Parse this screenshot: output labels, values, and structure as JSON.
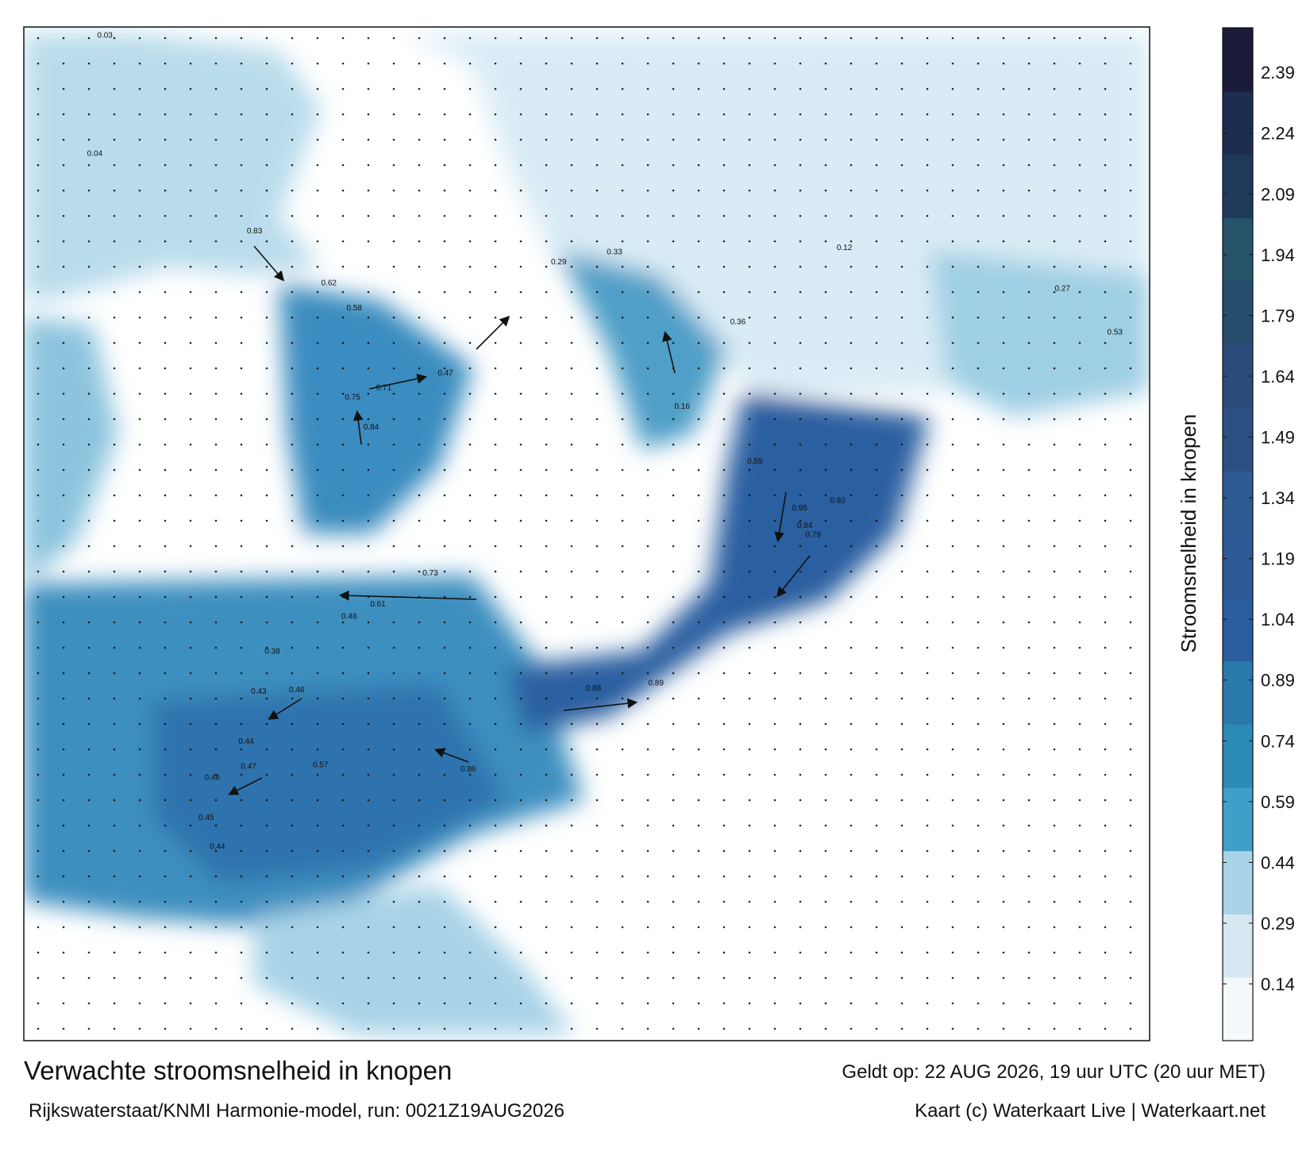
{
  "map": {
    "title": "Verwachte stroomsnelheid in knopen",
    "valid": "Geldt op: 22 AUG 2026, 19 uur UTC (20 uur MET)",
    "source": "Rijkswaterstaat/KNMI Harmonie-model, run: 0021Z19AUG2026",
    "credit": "Kaart (c) Waterkaart Live | Waterkaart.net",
    "speed_labels": [
      0.83,
      0.62,
      0.58,
      0.71,
      0.84,
      0.75,
      0.47,
      0.73,
      0.61,
      0.48,
      0.38,
      0.43,
      0.46,
      0.44,
      0.47,
      0.46,
      0.45,
      0.44,
      0.57,
      0.86,
      0.88,
      0.89,
      0.94,
      0.95,
      0.92,
      0.79,
      0.55,
      0.36,
      0.33,
      0.29,
      0.03,
      0.04,
      0.12,
      0.27,
      0.53,
      0.16
    ]
  },
  "colorbar": {
    "label": "Stroomsnelheid in knopen",
    "lim": [
      0,
      2.5
    ],
    "ticks": [
      0.14,
      0.29,
      0.44,
      0.59,
      0.74,
      0.89,
      1.04,
      1.19,
      1.34,
      1.49,
      1.64,
      1.79,
      1.94,
      2.09,
      2.24,
      2.39
    ],
    "colors": [
      "#f4f9fc",
      "#d6e9f2",
      "#a9d3e6",
      "#3f9fc8",
      "#2c8bb6",
      "#2979ac",
      "#2a5d9e",
      "#2e5a98",
      "#2f5b93",
      "#2c4f82",
      "#2b4c7a",
      "#264c6e",
      "#25536a",
      "#1f3a5a",
      "#1d2d4f",
      "#1a1a3a"
    ]
  }
}
